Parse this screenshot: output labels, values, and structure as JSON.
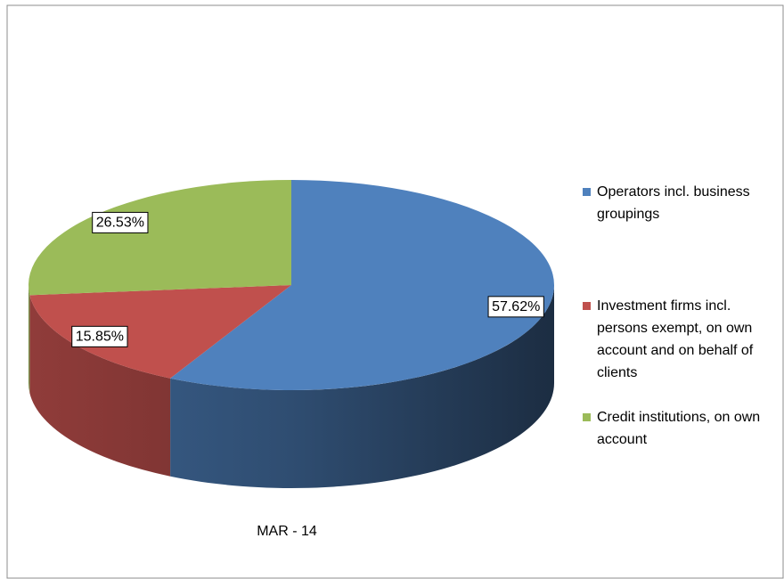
{
  "chart_data": {
    "type": "pie",
    "title": "MAR - 14",
    "categories": [
      "Operators incl. business groupings",
      "Investment firms incl. persons exempt, on own account and on behalf of clients",
      "Credit institutions, on own account"
    ],
    "values": [
      57.62,
      15.85,
      26.53
    ],
    "value_labels": [
      "57.62%",
      "15.85%",
      "26.53%"
    ],
    "colors": [
      "#4f81bd",
      "#c0504d",
      "#9bbb59"
    ],
    "legend": "right"
  }
}
